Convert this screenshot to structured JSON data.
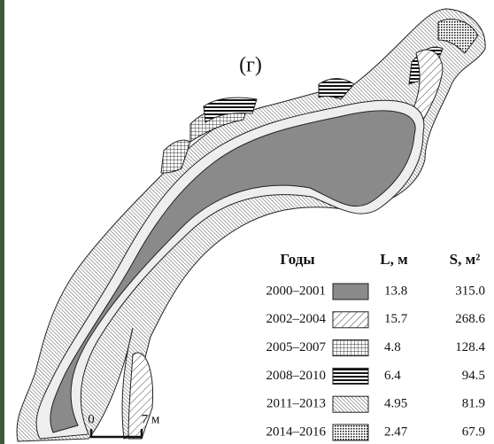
{
  "panel_label": "(г)",
  "legend": {
    "headers": [
      "Годы",
      "L, м",
      "S, м²"
    ],
    "rows": [
      [
        "2000–2001",
        "13.8",
        "315.0"
      ],
      [
        "2002–2004",
        "15.7",
        "268.6"
      ],
      [
        "2005–2007",
        "4.8",
        "128.4"
      ],
      [
        "2008–2010",
        "6.4",
        "94.5"
      ],
      [
        "2011–2013",
        "4.95",
        "81.9"
      ],
      [
        "2014–2016",
        "2.47",
        "67.9"
      ]
    ]
  },
  "scale_bar": {
    "start": "0",
    "end": "7 м"
  }
}
